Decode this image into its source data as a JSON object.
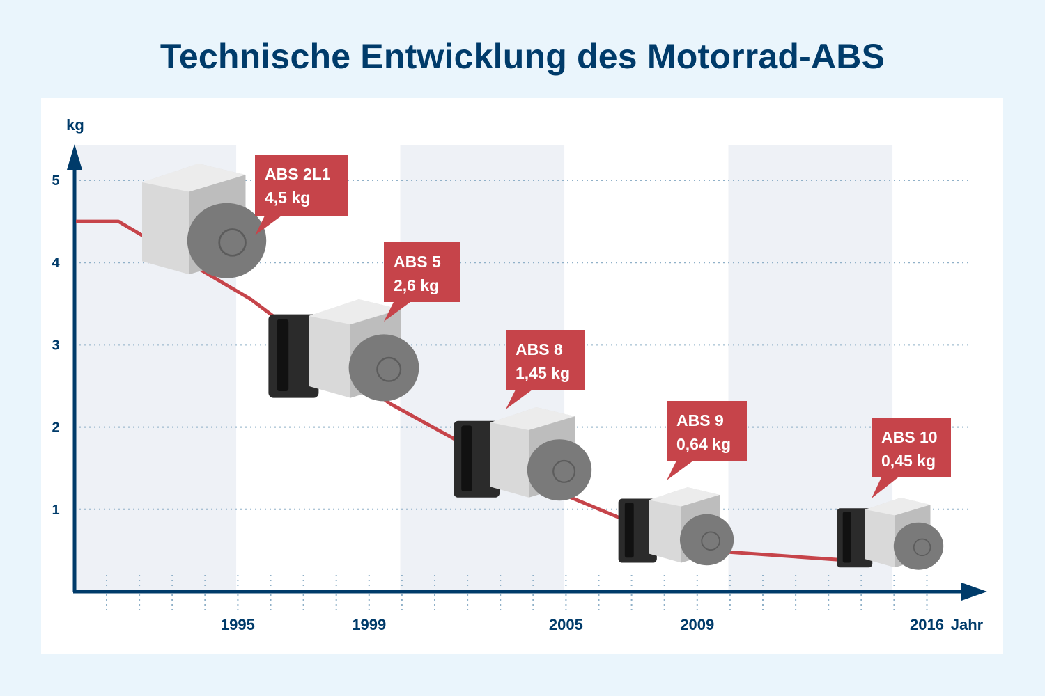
{
  "title": "Technische Entwicklung des Motorrad-ABS",
  "colors": {
    "background": "#eaf5fc",
    "panel": "#ffffff",
    "band": "#eef1f6",
    "axis": "#003b6a",
    "line": "#c6444a",
    "callout": "#c6444a",
    "gridline": "#8fb0c8"
  },
  "chart_data": {
    "type": "line",
    "title": "Technische Entwicklung des Motorrad-ABS",
    "xlabel": "Jahr",
    "ylabel": "kg",
    "xlim": [
      1990,
      2017
    ],
    "ylim": [
      0,
      5
    ],
    "yticks": [
      1,
      2,
      3,
      4,
      5
    ],
    "xtick_labels": [
      "1995",
      "1999",
      "2005",
      "2009",
      "2016"
    ],
    "grid": "horizontal dotted",
    "series": [
      {
        "values": [
          {
            "x": 1990,
            "y": 4.5
          },
          {
            "x": 1995,
            "y": 4.5
          },
          {
            "x": 1999,
            "y": 2.6
          },
          {
            "x": 2005,
            "y": 1.45
          },
          {
            "x": 2009,
            "y": 0.64
          },
          {
            "x": 2016,
            "y": 0.45
          }
        ]
      }
    ],
    "annotations": [
      {
        "x": 1995,
        "y": 4.5,
        "name": "ABS 2L1",
        "weight": "4,5 kg"
      },
      {
        "x": 1999,
        "y": 2.6,
        "name": "ABS 5",
        "weight": "2,6 kg"
      },
      {
        "x": 2005,
        "y": 1.45,
        "name": "ABS 8",
        "weight": "1,45 kg"
      },
      {
        "x": 2009,
        "y": 0.64,
        "name": "ABS 9",
        "weight": "0,64 kg"
      },
      {
        "x": 2016,
        "y": 0.45,
        "name": "ABS 10",
        "weight": "0,45 kg"
      }
    ],
    "units": [
      {
        "model": "ABS 2L1"
      },
      {
        "model": "ABS 5"
      },
      {
        "model": "ABS 8"
      },
      {
        "model": "ABS 9"
      },
      {
        "model": "ABS 10"
      }
    ]
  }
}
